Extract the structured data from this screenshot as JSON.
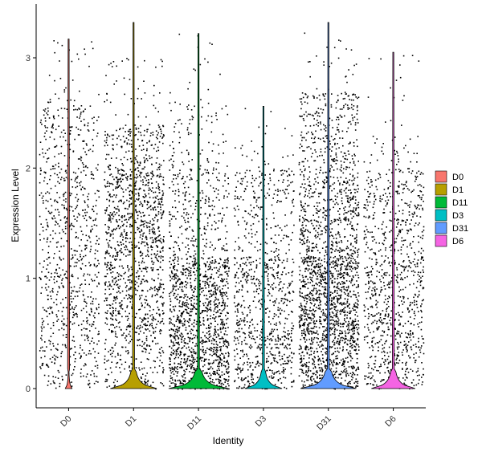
{
  "chart_data": {
    "type": "violin",
    "xlabel": "Identity",
    "ylabel": "Expression Level",
    "ylim": [
      -0.18,
      3.48
    ],
    "yticks": [
      0,
      1,
      2,
      3
    ],
    "grid": false,
    "legend_position": "right",
    "categories": [
      {
        "name": "D0",
        "color": "#F8766D",
        "max": 3.17,
        "jitter_max": 3.17,
        "violin_max": 3.17,
        "violin_width": 0.05,
        "points": [
          {
            "upper": 0.5,
            "density": 0.45
          },
          {
            "upper": 1.2,
            "density": 0.55
          },
          {
            "upper": 2.0,
            "density": 0.5
          },
          {
            "upper": 2.55,
            "density": 0.4
          },
          {
            "upper": 3.17,
            "density": 0.08
          }
        ]
      },
      {
        "name": "D1",
        "color": "#B79F00",
        "max": 3.32,
        "jitter_max": 3.0,
        "violin_max": 3.32,
        "violin_width": 0.35,
        "points": [
          {
            "upper": 0.5,
            "density": 0.5
          },
          {
            "upper": 1.2,
            "density": 0.9
          },
          {
            "upper": 2.0,
            "density": 1.1
          },
          {
            "upper": 2.4,
            "density": 0.6
          },
          {
            "upper": 3.0,
            "density": 0.1
          }
        ]
      },
      {
        "name": "D11",
        "color": "#00BA38",
        "max": 3.22,
        "jitter_max": 3.22,
        "violin_max": 3.22,
        "violin_width": 0.45,
        "points": [
          {
            "upper": 0.5,
            "density": 1.6
          },
          {
            "upper": 1.2,
            "density": 1.4
          },
          {
            "upper": 2.0,
            "density": 0.45
          },
          {
            "upper": 2.6,
            "density": 0.2
          },
          {
            "upper": 3.22,
            "density": 0.04
          }
        ]
      },
      {
        "name": "D3",
        "color": "#00BFC4",
        "max": 2.56,
        "jitter_max": 2.4,
        "violin_max": 2.56,
        "violin_width": 0.28,
        "points": [
          {
            "upper": 0.5,
            "density": 0.85
          },
          {
            "upper": 1.2,
            "density": 0.75
          },
          {
            "upper": 2.0,
            "density": 0.4
          },
          {
            "upper": 2.4,
            "density": 0.08
          },
          {
            "upper": 2.56,
            "density": 0.02
          }
        ]
      },
      {
        "name": "D31",
        "color": "#619CFF",
        "max": 3.32,
        "jitter_max": 3.32,
        "violin_max": 3.32,
        "violin_width": 0.42,
        "points": [
          {
            "upper": 0.5,
            "density": 1.4
          },
          {
            "upper": 1.2,
            "density": 1.8
          },
          {
            "upper": 2.0,
            "density": 0.9
          },
          {
            "upper": 2.7,
            "density": 0.55
          },
          {
            "upper": 3.32,
            "density": 0.06
          }
        ]
      },
      {
        "name": "D6",
        "color": "#F564E3",
        "max": 3.05,
        "jitter_max": 3.05,
        "violin_max": 3.05,
        "violin_width": 0.33,
        "points": [
          {
            "upper": 0.5,
            "density": 0.7
          },
          {
            "upper": 1.2,
            "density": 0.75
          },
          {
            "upper": 2.0,
            "density": 0.55
          },
          {
            "upper": 2.3,
            "density": 0.15
          },
          {
            "upper": 3.05,
            "density": 0.03
          }
        ]
      }
    ]
  }
}
